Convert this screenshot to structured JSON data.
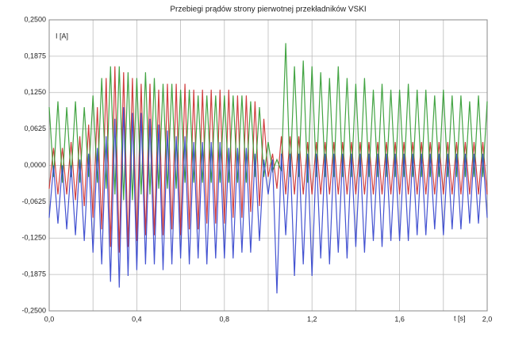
{
  "chart_data": {
    "type": "line",
    "title": "Przebiegi prądów strony pierwotnej przekładników VSKI",
    "y_label": "I [A]",
    "x_label": "t [s]",
    "xlim": [
      0,
      2
    ],
    "ylim": [
      -0.25,
      0.25
    ],
    "xticks": [
      {
        "value": 0,
        "label": "0,0"
      },
      {
        "value": 0.4,
        "label": "0,4"
      },
      {
        "value": 0.8,
        "label": "0,8"
      },
      {
        "value": 1.2,
        "label": "1,2"
      },
      {
        "value": 1.6,
        "label": "1,6"
      },
      {
        "value": 2,
        "label": "2,0"
      }
    ],
    "xminor": [
      0.2,
      0.6,
      1.0,
      1.4,
      1.8
    ],
    "yticks": [
      {
        "value": 0.25,
        "label": "0,2500"
      },
      {
        "value": 0.1875,
        "label": "0,1875"
      },
      {
        "value": 0.125,
        "label": "0,1250"
      },
      {
        "value": 0.0625,
        "label": "0,0625"
      },
      {
        "value": 0,
        "label": "0,0000"
      },
      {
        "value": -0.0625,
        "label": "-0,0625"
      },
      {
        "value": -0.125,
        "label": "-0,1250"
      },
      {
        "value": -0.1875,
        "label": "-0,1875"
      },
      {
        "value": -0.25,
        "label": "-0,2500"
      }
    ],
    "grid": true,
    "x": [
      0,
      0.02,
      0.04,
      0.06,
      0.08,
      0.1,
      0.12,
      0.14,
      0.16,
      0.18,
      0.2,
      0.22,
      0.24,
      0.26,
      0.28,
      0.3,
      0.32,
      0.34,
      0.36,
      0.38,
      0.4,
      0.42,
      0.44,
      0.46,
      0.48,
      0.5,
      0.52,
      0.54,
      0.56,
      0.58,
      0.6,
      0.62,
      0.64,
      0.66,
      0.68,
      0.7,
      0.72,
      0.74,
      0.76,
      0.78,
      0.8,
      0.82,
      0.84,
      0.86,
      0.88,
      0.9,
      0.92,
      0.94,
      0.96,
      0.98,
      1.0,
      1.02,
      1.04,
      1.06,
      1.08,
      1.1,
      1.12,
      1.14,
      1.16,
      1.18,
      1.2,
      1.22,
      1.24,
      1.26,
      1.28,
      1.3,
      1.32,
      1.34,
      1.36,
      1.38,
      1.4,
      1.42,
      1.44,
      1.46,
      1.48,
      1.5,
      1.52,
      1.54,
      1.56,
      1.58,
      1.6,
      1.62,
      1.64,
      1.66,
      1.68,
      1.7,
      1.72,
      1.74,
      1.76,
      1.78,
      1.8,
      1.82,
      1.84,
      1.86,
      1.88,
      1.9,
      1.92,
      1.94,
      1.96,
      1.98,
      2.0
    ],
    "series": [
      {
        "color": "#cc2a2a",
        "values": [
          -0.04,
          0.03,
          -0.05,
          0.03,
          -0.05,
          0.04,
          -0.06,
          0.05,
          -0.07,
          0.07,
          -0.09,
          0.1,
          -0.11,
          0.15,
          -0.14,
          0.17,
          -0.15,
          0.16,
          -0.14,
          0.15,
          -0.13,
          0.14,
          -0.12,
          0.14,
          -0.12,
          0.13,
          -0.12,
          0.14,
          -0.11,
          0.14,
          -0.12,
          0.14,
          -0.11,
          0.13,
          -0.11,
          0.13,
          -0.1,
          0.13,
          -0.1,
          0.13,
          -0.1,
          0.13,
          -0.09,
          0.12,
          -0.09,
          0.12,
          -0.08,
          0.11,
          -0.07,
          0.08,
          -0.02,
          0.02,
          -0.04,
          0.05,
          -0.05,
          0.05,
          -0.05,
          0.05,
          -0.05,
          0.04,
          -0.05,
          0.04,
          -0.05,
          0.04,
          -0.05,
          0.04,
          -0.05,
          0.04,
          -0.05,
          0.04,
          -0.05,
          0.04,
          -0.05,
          0.04,
          -0.05,
          0.04,
          -0.05,
          0.04,
          -0.05,
          0.04,
          -0.05,
          0.04,
          -0.05,
          0.04,
          -0.05,
          0.04,
          -0.05,
          0.04,
          -0.05,
          0.04,
          -0.05,
          0.04,
          -0.05,
          0.04,
          -0.05,
          0.04,
          -0.05,
          0.04,
          -0.05,
          0.04,
          -0.05
        ]
      },
      {
        "color": "#2f9a2f",
        "values": [
          0.1,
          -0.02,
          0.11,
          -0.03,
          0.1,
          -0.02,
          0.11,
          -0.03,
          0.1,
          -0.02,
          0.12,
          -0.03,
          0.15,
          -0.04,
          0.17,
          -0.05,
          0.17,
          -0.06,
          0.16,
          -0.06,
          0.15,
          -0.05,
          0.16,
          -0.05,
          0.15,
          -0.04,
          0.14,
          -0.04,
          0.14,
          -0.04,
          0.13,
          -0.03,
          0.13,
          -0.03,
          0.12,
          -0.03,
          0.12,
          -0.03,
          0.12,
          -0.03,
          0.12,
          -0.03,
          0.12,
          -0.03,
          0.12,
          -0.03,
          0.11,
          -0.02,
          0.1,
          -0.02,
          0.04,
          -0.01,
          0.01,
          -0.01,
          0.21,
          -0.02,
          0.17,
          -0.02,
          0.18,
          -0.03,
          0.17,
          -0.02,
          0.16,
          -0.02,
          0.15,
          -0.02,
          0.17,
          -0.02,
          0.15,
          -0.02,
          0.14,
          -0.02,
          0.15,
          -0.02,
          0.13,
          -0.02,
          0.14,
          -0.02,
          0.13,
          -0.02,
          0.13,
          -0.02,
          0.14,
          -0.02,
          0.13,
          -0.02,
          0.13,
          -0.02,
          0.12,
          -0.02,
          0.13,
          -0.02,
          0.12,
          -0.02,
          0.12,
          -0.02,
          0.11,
          -0.02,
          0.12,
          -0.02,
          0.11
        ]
      },
      {
        "color": "#3040cc",
        "values": [
          -0.09,
          0.0,
          -0.1,
          0.0,
          -0.11,
          0.0,
          -0.12,
          0.01,
          -0.13,
          0.02,
          -0.15,
          0.03,
          -0.17,
          0.05,
          -0.2,
          0.08,
          -0.21,
          0.1,
          -0.19,
          0.09,
          -0.18,
          0.09,
          -0.17,
          0.08,
          -0.17,
          0.07,
          -0.18,
          0.06,
          -0.17,
          0.05,
          -0.16,
          0.05,
          -0.17,
          0.04,
          -0.16,
          0.04,
          -0.17,
          0.04,
          -0.16,
          0.04,
          -0.16,
          0.03,
          -0.16,
          0.03,
          -0.15,
          0.03,
          -0.15,
          0.02,
          -0.13,
          0.01,
          -0.05,
          0.01,
          -0.22,
          0.02,
          -0.12,
          0.02,
          -0.19,
          0.02,
          -0.17,
          0.02,
          -0.19,
          0.02,
          -0.16,
          0.02,
          -0.17,
          0.02,
          -0.15,
          0.02,
          -0.16,
          0.02,
          -0.14,
          0.02,
          -0.15,
          0.02,
          -0.13,
          0.02,
          -0.14,
          0.02,
          -0.13,
          0.02,
          -0.13,
          0.02,
          -0.13,
          0.02,
          -0.12,
          0.02,
          -0.12,
          0.02,
          -0.11,
          0.02,
          -0.12,
          0.02,
          -0.11,
          0.02,
          -0.11,
          0.02,
          -0.1,
          0.02,
          -0.1,
          0.02,
          -0.09
        ]
      }
    ]
  }
}
